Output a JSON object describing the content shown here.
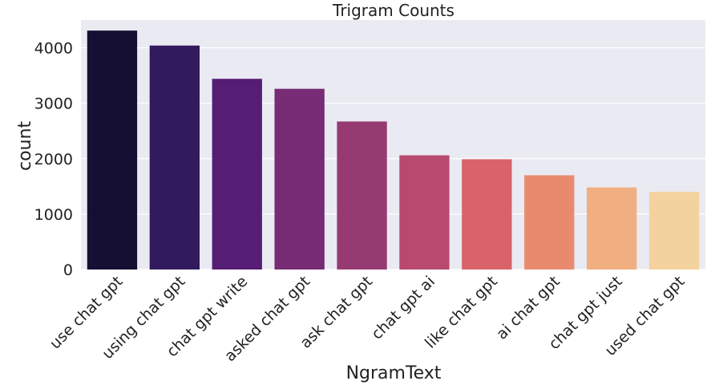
{
  "chart_data": {
    "type": "bar",
    "title": "Trigram Counts",
    "xlabel": "NgramText",
    "ylabel": "count",
    "categories": [
      "use chat gpt",
      "using chat gpt",
      "chat gpt write",
      "asked chat gpt",
      "ask chat gpt",
      "chat gpt ai",
      "like chat gpt",
      "ai chat gpt",
      "chat gpt just",
      "used chat gpt"
    ],
    "values": [
      4310,
      4040,
      3440,
      3260,
      2670,
      2060,
      1990,
      1700,
      1480,
      1400
    ],
    "colors": [
      "#150f33",
      "#321a5e",
      "#561d74",
      "#772c75",
      "#963a72",
      "#b9496e",
      "#d9636a",
      "#e98a6f",
      "#f1ae80",
      "#f4d29e"
    ],
    "ylim": [
      0,
      4500
    ],
    "yticks": [
      0,
      1000,
      2000,
      3000,
      4000
    ],
    "grid": true,
    "background": "#eaeaf2"
  }
}
